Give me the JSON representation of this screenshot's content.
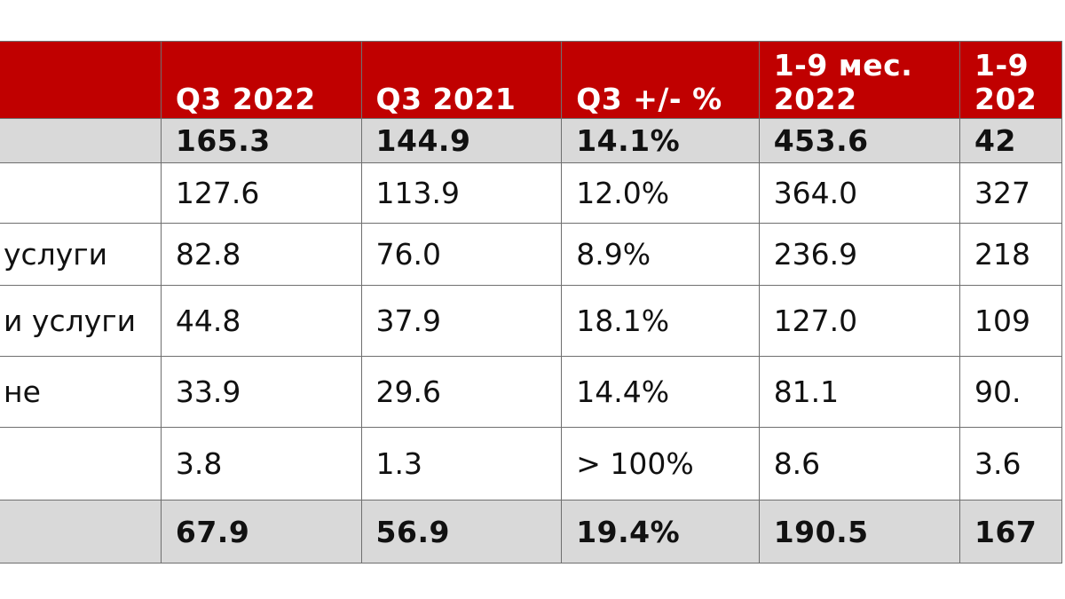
{
  "table": {
    "headers": [
      {
        "lines": [
          ""
        ]
      },
      {
        "lines": [
          "Q3 2022"
        ]
      },
      {
        "lines": [
          "Q3 2021"
        ]
      },
      {
        "lines": [
          "Q3 +/- %"
        ]
      },
      {
        "lines": [
          "1-9 мес.",
          "2022"
        ]
      },
      {
        "lines": [
          "1-9",
          "202"
        ]
      }
    ],
    "rows": [
      {
        "style": "total",
        "cells": [
          "",
          "165.3",
          "144.9",
          "14.1%",
          "453.6",
          "42"
        ]
      },
      {
        "style": "body",
        "cells": [
          "",
          "127.6",
          "113.9",
          "12.0%",
          "364.0",
          "327"
        ]
      },
      {
        "style": "body",
        "cells": [
          "услуги",
          "82.8",
          "76.0",
          "8.9%",
          "236.9",
          "218"
        ]
      },
      {
        "style": "body",
        "cells": [
          "и услуги",
          "44.8",
          "37.9",
          "18.1%",
          "127.0",
          "109"
        ]
      },
      {
        "style": "body",
        "cells": [
          "не",
          "33.9",
          "29.6",
          "14.4%",
          "81.1",
          "90."
        ]
      },
      {
        "style": "body",
        "cells": [
          "",
          "3.8",
          "1.3",
          "> 100%",
          "8.6",
          "3.6"
        ]
      },
      {
        "style": "total",
        "cells": [
          "",
          "67.9",
          "56.9",
          "19.4%",
          "190.5",
          "167"
        ]
      }
    ]
  },
  "colors": {
    "header_bg": "#c00000",
    "header_text": "#ffffff",
    "total_row_bg": "#d9d9d9",
    "grid_line": "#6f6f6f"
  }
}
